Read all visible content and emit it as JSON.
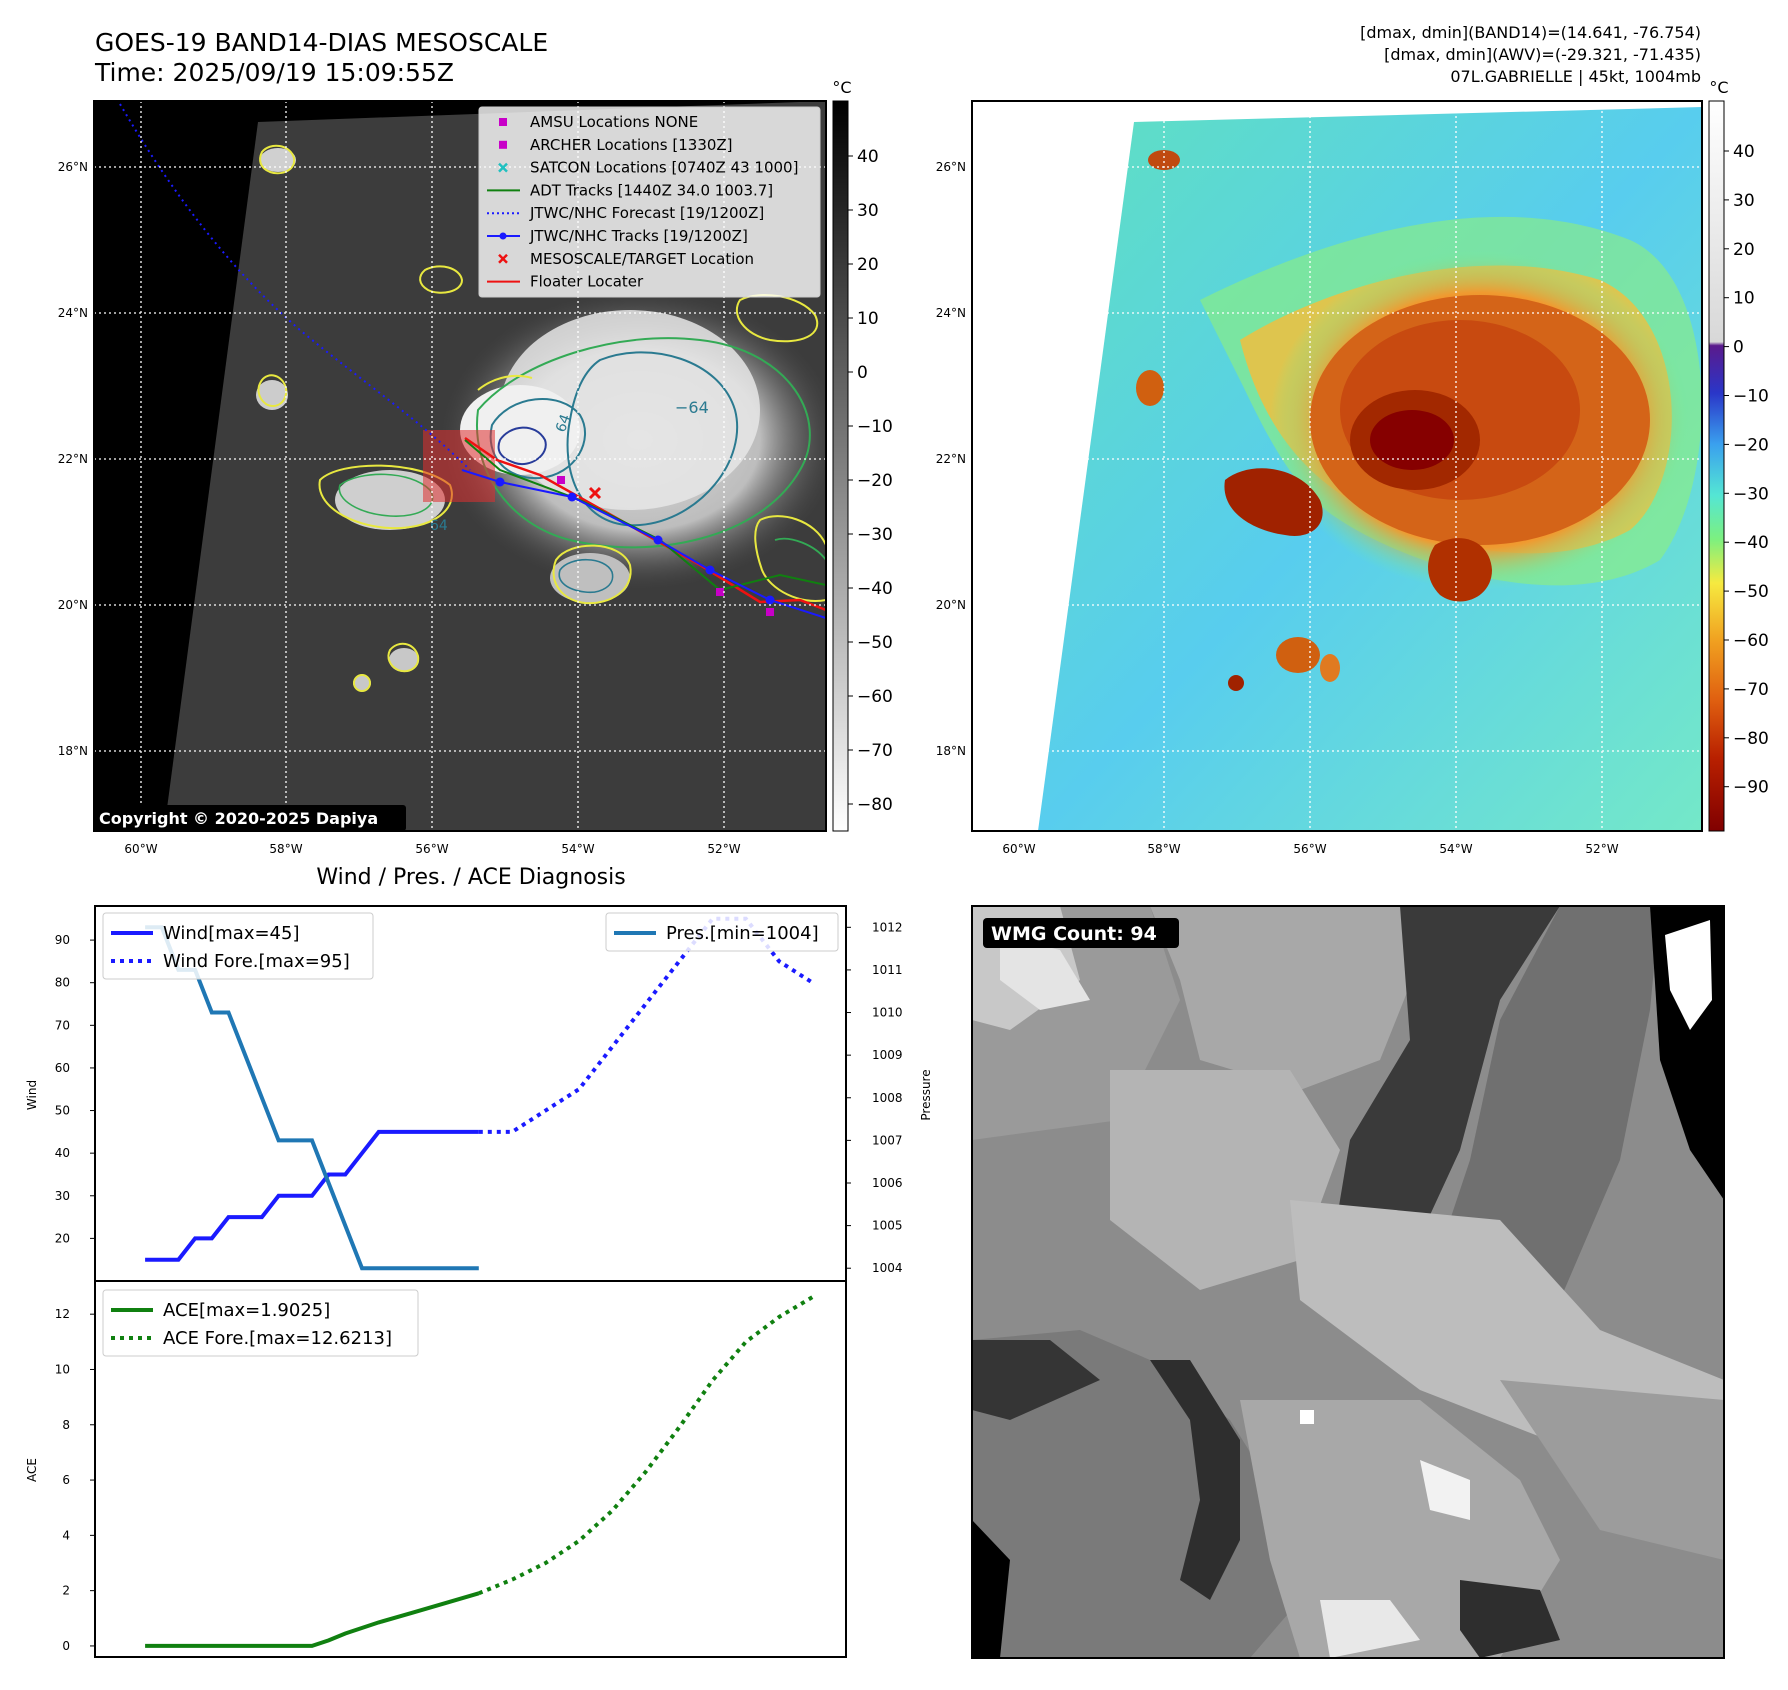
{
  "header": {
    "title": "GOES-19 BAND14-DIAS MESOSCALE",
    "time": "Time: 2025/09/19 15:09:55Z",
    "stats_band14": "[dmax, dmin](BAND14)=(14.641, -76.754)",
    "stats_awv": "[dmax, dmin](AWV)=(-29.321, -71.435)",
    "storm": "07L.GABRIELLE | 45kt, 1004mb"
  },
  "map_axes": {
    "lat_labels": [
      "26°N",
      "24°N",
      "22°N",
      "20°N",
      "18°N"
    ],
    "lon_labels": [
      "60°W",
      "58°W",
      "56°W",
      "54°W",
      "52°W"
    ],
    "grid": true
  },
  "ir_panel": {
    "copyright": "Copyright © 2020-2025 Dapiya",
    "contour_label_1": "−64",
    "contour_label_2": "64",
    "contour_label_3": "64",
    "legend": [
      {
        "label": "AMSU Locations NONE",
        "marker": "square",
        "color": "#c800c8"
      },
      {
        "label": "ARCHER Locations [1330Z]",
        "marker": "square",
        "color": "#c800c8"
      },
      {
        "label": "SATCON Locations [0740Z 43 1000]",
        "marker": "x",
        "color": "#20c0c0"
      },
      {
        "label": "ADT Tracks [1440Z 34.0 1003.7]",
        "marker": "line",
        "color": "#108010"
      },
      {
        "label": "JTWC/NHC Forecast [19/1200Z]",
        "marker": "dotted",
        "color": "#1a1aff"
      },
      {
        "label": "JTWC/NHC Tracks [19/1200Z]",
        "marker": "line-dot",
        "color": "#1a1aff"
      },
      {
        "label": "MESOSCALE/TARGET Location",
        "marker": "x",
        "color": "#ee1111"
      },
      {
        "label": "Floater Locater",
        "marker": "line",
        "color": "#ee1111"
      }
    ]
  },
  "colorbar_gray": {
    "unit": "°C",
    "ticks": [
      "40",
      "30",
      "20",
      "10",
      "0",
      "−10",
      "−20",
      "−30",
      "−40",
      "−50",
      "−60",
      "−70",
      "−80"
    ]
  },
  "colorbar_color": {
    "unit": "°C",
    "ticks": [
      "40",
      "30",
      "20",
      "10",
      "0",
      "−10",
      "−20",
      "−30",
      "−40",
      "−50",
      "−60",
      "−70",
      "−80",
      "−90"
    ]
  },
  "wmg_panel": {
    "label": "WMG Count: 94"
  },
  "chart_data": [
    {
      "type": "line",
      "title": "Wind / Pres. / ACE Diagnosis",
      "ylabel": "Wind",
      "ylabel2": "Pressure",
      "ylim": [
        10,
        98
      ],
      "ylim2": [
        1003.7,
        1012.5
      ],
      "yticks": [
        20,
        30,
        40,
        50,
        60,
        70,
        80,
        90
      ],
      "yticks2": [
        1004,
        1005,
        1006,
        1007,
        1008,
        1009,
        1010,
        1011,
        1012
      ],
      "x": [
        0,
        1,
        2,
        3,
        4,
        5,
        6,
        7,
        8,
        9,
        10,
        11,
        12,
        13,
        14,
        15,
        16,
        17,
        18,
        19,
        20
      ],
      "series": [
        {
          "name": "Wind[max=45]",
          "style": "solid",
          "color": "#1a1aff",
          "axis": "left",
          "x": [
            0,
            0.5,
            1,
            1.5,
            2,
            2.5,
            3,
            3.5,
            4,
            4.5,
            5,
            5.5,
            6,
            6.5,
            7,
            7.5,
            8,
            9,
            10
          ],
          "values": [
            15,
            15,
            15,
            20,
            20,
            25,
            25,
            25,
            30,
            30,
            30,
            35,
            35,
            40,
            45,
            45,
            45,
            45,
            45
          ]
        },
        {
          "name": "Wind Fore.[max=95]",
          "style": "dotted",
          "color": "#1a1aff",
          "axis": "left",
          "x": [
            10,
            11,
            12,
            13,
            14,
            15,
            16,
            17,
            18,
            19,
            20
          ],
          "values": [
            45,
            45,
            50,
            55,
            65,
            75,
            85,
            95,
            95,
            85,
            80
          ]
        },
        {
          "name": "Pres.[min=1004]",
          "style": "solid",
          "color": "#1f77b4",
          "axis": "right",
          "x": [
            0,
            0.5,
            1,
            1.5,
            2,
            2.5,
            3,
            3.5,
            4,
            4.5,
            5,
            5.5,
            6,
            6.5,
            7,
            7.5,
            8,
            9,
            10
          ],
          "values": [
            1012,
            1012,
            1011,
            1011,
            1010,
            1010,
            1009,
            1008,
            1007,
            1007,
            1007,
            1006,
            1005,
            1004,
            1004,
            1004,
            1004,
            1004,
            1004
          ]
        }
      ]
    },
    {
      "type": "line",
      "ylabel": "ACE",
      "ylim": [
        -0.4,
        13.2
      ],
      "yticks": [
        0,
        2,
        4,
        6,
        8,
        10,
        12
      ],
      "series": [
        {
          "name": "ACE[max=1.9025]",
          "style": "solid",
          "color": "#108010",
          "x": [
            0,
            1,
            2,
            3,
            4,
            5,
            5.5,
            6,
            7,
            8,
            9,
            10
          ],
          "values": [
            0,
            0,
            0,
            0,
            0,
            0,
            0.2,
            0.45,
            0.85,
            1.2,
            1.55,
            1.9025
          ]
        },
        {
          "name": "ACE Fore.[max=12.6213]",
          "style": "dotted",
          "color": "#108010",
          "x": [
            10,
            11,
            12,
            13,
            14,
            15,
            16,
            17,
            18,
            19,
            20
          ],
          "values": [
            1.9025,
            2.4,
            3.0,
            3.8,
            4.9,
            6.3,
            7.9,
            9.6,
            11.0,
            11.9,
            12.6213
          ]
        }
      ]
    }
  ]
}
